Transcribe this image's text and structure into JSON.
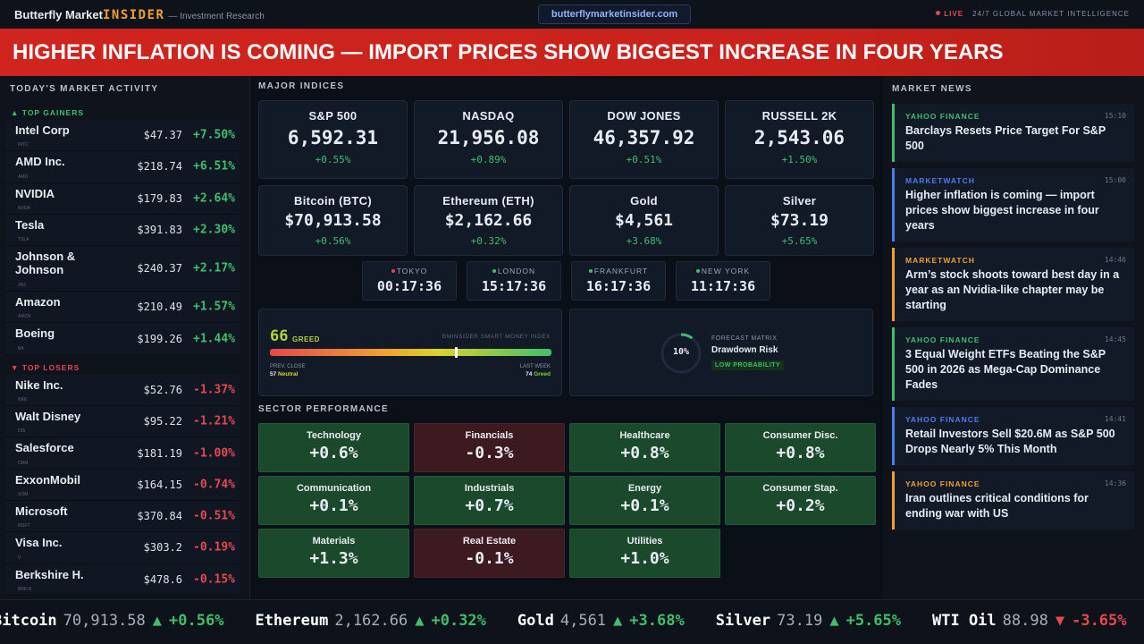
{
  "header": {
    "brand": "Butterfly Market",
    "brand_accent": "INSIDER",
    "tagline": "— Investment Research",
    "url": "butterflymarketinsider.com",
    "live": "LIVE",
    "slogan": "24/7 GLOBAL MARKET INTELLIGENCE"
  },
  "banner": {
    "headline": "HIGHER INFLATION IS COMING — IMPORT PRICES SHOW BIGGEST INCREASE IN FOUR YEARS"
  },
  "market_activity": {
    "title": "TODAY'S MARKET ACTIVITY",
    "gainers": {
      "label": "▲ TOP GAINERS",
      "rows": [
        {
          "name": "Intel Corp",
          "ticker": "INTC",
          "price": "$47.37",
          "change": "+7.50%"
        },
        {
          "name": "AMD Inc.",
          "ticker": "AMD",
          "price": "$218.74",
          "change": "+6.51%"
        },
        {
          "name": "NVIDIA",
          "ticker": "NVDA",
          "price": "$179.83",
          "change": "+2.64%"
        },
        {
          "name": "Tesla",
          "ticker": "TSLA",
          "price": "$391.83",
          "change": "+2.30%"
        },
        {
          "name": "Johnson & Johnson",
          "ticker": "JNJ",
          "price": "$240.37",
          "change": "+2.17%"
        },
        {
          "name": "Amazon",
          "ticker": "AMZN",
          "price": "$210.49",
          "change": "+1.57%"
        },
        {
          "name": "Boeing",
          "ticker": "BA",
          "price": "$199.26",
          "change": "+1.44%"
        }
      ]
    },
    "losers": {
      "label": "▼ TOP LOSERS",
      "rows": [
        {
          "name": "Nike Inc.",
          "ticker": "NKE",
          "price": "$52.76",
          "change": "-1.37%"
        },
        {
          "name": "Walt Disney",
          "ticker": "DIS",
          "price": "$95.22",
          "change": "-1.21%"
        },
        {
          "name": "Salesforce",
          "ticker": "CRM",
          "price": "$181.19",
          "change": "-1.00%"
        },
        {
          "name": "ExxonMobil",
          "ticker": "XOM",
          "price": "$164.15",
          "change": "-0.74%"
        },
        {
          "name": "Microsoft",
          "ticker": "MSFT",
          "price": "$370.84",
          "change": "-0.51%"
        },
        {
          "name": "Visa Inc.",
          "ticker": "V",
          "price": "$303.2",
          "change": "-0.19%"
        },
        {
          "name": "Berkshire H.",
          "ticker": "BRK-B",
          "price": "$478.6",
          "change": "-0.15%"
        }
      ]
    }
  },
  "indices": {
    "title": "MAJOR INDICES",
    "cards": [
      {
        "name": "S&P 500",
        "value": "6,592.31",
        "change": "+0.55%"
      },
      {
        "name": "NASDAQ",
        "value": "21,956.08",
        "change": "+0.89%"
      },
      {
        "name": "DOW JONES",
        "value": "46,357.92",
        "change": "+0.51%"
      },
      {
        "name": "RUSSELL 2K",
        "value": "2,543.06",
        "change": "+1.50%"
      },
      {
        "name": "Bitcoin (BTC)",
        "value": "$70,913.58",
        "change": "+0.56%"
      },
      {
        "name": "Ethereum (ETH)",
        "value": "$2,162.66",
        "change": "+0.32%"
      },
      {
        "name": "Gold",
        "value": "$4,561",
        "change": "+3.68%"
      },
      {
        "name": "Silver",
        "value": "$73.19",
        "change": "+5.65%"
      }
    ]
  },
  "clocks": [
    {
      "city": "TOKYO",
      "time": "00:17:36"
    },
    {
      "city": "LONDON",
      "time": "15:17:36"
    },
    {
      "city": "FRANKFURT",
      "time": "16:17:36"
    },
    {
      "city": "NEW YORK",
      "time": "11:17:36"
    }
  ],
  "sentiment": {
    "value": 66,
    "state": "GREED",
    "index_name": "BMINSIDER SMART MONEY INDEX",
    "prev_label": "PREV. CLOSE",
    "prev_value": "57",
    "prev_state": "Neutral",
    "week_label": "LAST WEEK",
    "week_value": "74",
    "week_state": "Greed"
  },
  "forecast": {
    "value": 10,
    "label": "10%",
    "title": "FORECAST MATRIX",
    "name": "Drawdown Risk",
    "badge": "LOW PROBABILITY"
  },
  "sectors": {
    "title": "SECTOR PERFORMANCE",
    "tiles": [
      {
        "name": "Technology",
        "change": "+0.6%"
      },
      {
        "name": "Financials",
        "change": "-0.3%"
      },
      {
        "name": "Healthcare",
        "change": "+0.8%"
      },
      {
        "name": "Consumer Disc.",
        "change": "+0.8%"
      },
      {
        "name": "Communication",
        "change": "+0.1%"
      },
      {
        "name": "Industrials",
        "change": "+0.7%"
      },
      {
        "name": "Energy",
        "change": "+0.1%"
      },
      {
        "name": "Consumer Stap.",
        "change": "+0.2%"
      },
      {
        "name": "Materials",
        "change": "+1.3%"
      },
      {
        "name": "Real Estate",
        "change": "-0.1%"
      },
      {
        "name": "Utilities",
        "change": "+1.0%"
      }
    ]
  },
  "news": {
    "title": "MARKET NEWS",
    "items": [
      {
        "source": "YAHOO FINANCE",
        "time": "15:10",
        "headline": "Barclays Resets Price Target For S&P 500",
        "color": "#3fbf6a"
      },
      {
        "source": "MARKETWATCH",
        "time": "15:00",
        "headline": "Higher inflation is coming — import prices show biggest increase in four years",
        "color": "#4c7cf0"
      },
      {
        "source": "MARKETWATCH",
        "time": "14:46",
        "headline": "Arm’s stock shoots toward best day in a year as an Nvidia-like chapter may be starting",
        "color": "#f0a030"
      },
      {
        "source": "YAHOO FINANCE",
        "time": "14:45",
        "headline": "3 Equal Weight ETFs Beating the S&P 500 in 2026 as Mega-Cap Dominance Fades",
        "color": "#3fbf6a"
      },
      {
        "source": "YAHOO FINANCE",
        "time": "14:41",
        "headline": "Retail Investors Sell $20.6M as S&P 500 Drops Nearly 5% This Month",
        "color": "#4c7cf0"
      },
      {
        "source": "YAHOO FINANCE",
        "time": "14:36",
        "headline": "Iran outlines critical conditions for ending war with US",
        "color": "#f0a030"
      }
    ]
  },
  "ticker": [
    {
      "name": "Bitcoin",
      "price": "70,913.58",
      "arrow": "▲",
      "change": "+0.56%"
    },
    {
      "name": "Ethereum",
      "price": "2,162.66",
      "arrow": "▲",
      "change": "+0.32%"
    },
    {
      "name": "Gold",
      "price": "4,561",
      "arrow": "▲",
      "change": "+3.68%"
    },
    {
      "name": "Silver",
      "price": "73.19",
      "arrow": "▲",
      "change": "+5.65%"
    },
    {
      "name": "WTI Oil",
      "price": "88.98",
      "arrow": "▼",
      "change": "-3.65%"
    }
  ]
}
